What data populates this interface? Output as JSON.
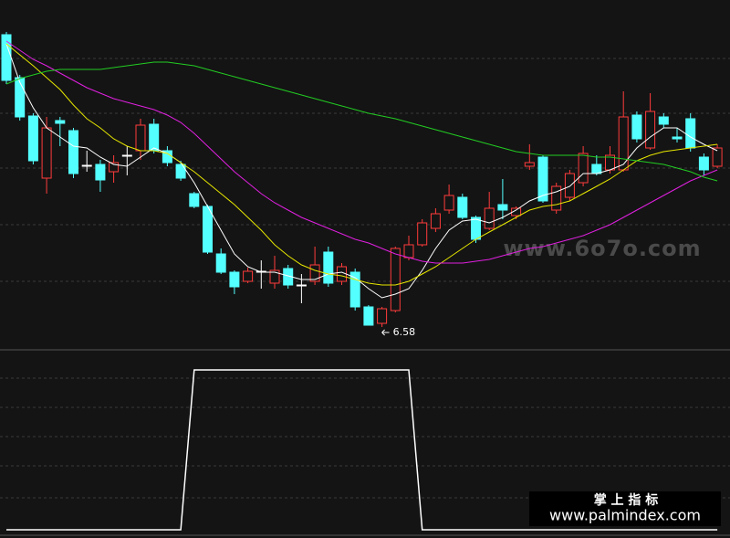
{
  "chart_data": [
    {
      "type": "candlestick",
      "ylim": [
        6.34,
        10.16
      ],
      "up_color": "#ff3b3b",
      "down_color": "#54ffff",
      "flat_color": "#ffffff",
      "open": [
        9.78,
        9.31,
        8.89,
        8.21,
        8.84,
        8.73,
        8.35,
        8.36,
        8.28,
        8.46,
        8.51,
        8.8,
        8.51,
        8.36,
        8.04,
        7.9,
        7.38,
        7.18,
        7.08,
        7.19,
        7.06,
        7.22,
        7.04,
        7.08,
        7.4,
        7.08,
        7.18,
        6.8,
        6.62,
        6.76,
        7.34,
        7.48,
        7.66,
        7.86,
        8.0,
        7.78,
        7.66,
        7.92,
        7.8,
        8.34,
        8.44,
        7.86,
        8.0,
        8.16,
        8.36,
        8.3,
        8.3,
        8.9,
        8.54,
        8.88,
        8.66,
        8.86,
        8.44,
        8.34
      ],
      "high": [
        9.81,
        9.34,
        8.92,
        8.88,
        8.88,
        8.76,
        8.51,
        8.41,
        8.46,
        8.56,
        8.86,
        8.86,
        8.56,
        8.4,
        8.06,
        7.92,
        7.44,
        7.2,
        7.23,
        7.31,
        7.36,
        7.26,
        7.16,
        7.46,
        7.46,
        7.28,
        7.22,
        6.82,
        6.8,
        7.46,
        7.58,
        7.76,
        7.88,
        8.14,
        8.04,
        7.8,
        8.06,
        8.2,
        7.9,
        8.58,
        8.46,
        8.16,
        8.3,
        8.56,
        8.46,
        8.56,
        9.16,
        8.94,
        9.14,
        8.92,
        8.76,
        8.92,
        8.48,
        8.58
      ],
      "low": [
        9.24,
        8.84,
        8.36,
        8.04,
        8.56,
        8.21,
        8.28,
        8.06,
        8.16,
        8.24,
        8.41,
        8.48,
        8.34,
        8.18,
        7.88,
        7.38,
        7.16,
        6.94,
        7.06,
        7.0,
        7.0,
        7.0,
        6.84,
        7.04,
        7.02,
        7.04,
        6.76,
        6.6,
        6.58,
        6.74,
        7.31,
        7.46,
        7.62,
        7.82,
        7.76,
        7.5,
        7.64,
        7.76,
        7.76,
        8.3,
        7.94,
        7.82,
        7.96,
        8.12,
        8.24,
        8.26,
        8.28,
        8.6,
        8.52,
        8.76,
        8.6,
        8.5,
        8.24,
        8.32
      ],
      "close": [
        9.28,
        8.88,
        8.4,
        8.76,
        8.81,
        8.26,
        8.35,
        8.19,
        8.38,
        8.46,
        8.79,
        8.51,
        8.38,
        8.21,
        7.9,
        7.4,
        7.18,
        7.02,
        7.19,
        7.19,
        7.2,
        7.04,
        7.04,
        7.26,
        7.06,
        7.24,
        6.8,
        6.6,
        6.78,
        7.44,
        7.48,
        7.72,
        7.82,
        8.02,
        7.78,
        7.54,
        7.88,
        7.86,
        7.88,
        8.38,
        7.96,
        8.12,
        8.26,
        8.48,
        8.26,
        8.46,
        8.88,
        8.64,
        8.94,
        8.8,
        8.64,
        8.54,
        8.3,
        8.54
      ],
      "series": [
        {
          "color": "#ffffff",
          "values": [
            9.68,
            9.26,
            8.98,
            8.76,
            8.66,
            8.56,
            8.54,
            8.44,
            8.36,
            8.34,
            8.44,
            8.54,
            8.48,
            8.38,
            8.16,
            7.9,
            7.64,
            7.38,
            7.24,
            7.18,
            7.18,
            7.14,
            7.1,
            7.1,
            7.16,
            7.18,
            7.12,
            7.0,
            6.9,
            6.94,
            7.0,
            7.2,
            7.44,
            7.64,
            7.74,
            7.76,
            7.72,
            7.78,
            7.86,
            7.96,
            8.02,
            8.06,
            8.12,
            8.26,
            8.26,
            8.3,
            8.36,
            8.54,
            8.66,
            8.76,
            8.76,
            8.66,
            8.58,
            8.51
          ]
        },
        {
          "color": "#e6e600",
          "values": [
            9.68,
            9.56,
            9.44,
            9.31,
            9.18,
            9.01,
            8.86,
            8.76,
            8.64,
            8.56,
            8.51,
            8.51,
            8.48,
            8.38,
            8.28,
            8.16,
            8.04,
            7.92,
            7.78,
            7.64,
            7.48,
            7.36,
            7.26,
            7.2,
            7.16,
            7.14,
            7.1,
            7.06,
            7.04,
            7.04,
            7.08,
            7.16,
            7.24,
            7.34,
            7.44,
            7.54,
            7.62,
            7.7,
            7.78,
            7.86,
            7.9,
            7.92,
            7.96,
            8.04,
            8.12,
            8.2,
            8.3,
            8.4,
            8.46,
            8.5,
            8.52,
            8.54,
            8.56,
            8.58
          ]
        },
        {
          "color": "#e020e0",
          "values": [
            9.71,
            9.61,
            9.51,
            9.44,
            9.36,
            9.28,
            9.2,
            9.14,
            9.08,
            9.04,
            9.0,
            8.96,
            8.9,
            8.82,
            8.7,
            8.56,
            8.42,
            8.28,
            8.16,
            8.04,
            7.94,
            7.86,
            7.78,
            7.72,
            7.66,
            7.6,
            7.54,
            7.5,
            7.44,
            7.38,
            7.34,
            7.3,
            7.28,
            7.28,
            7.28,
            7.3,
            7.32,
            7.36,
            7.4,
            7.44,
            7.46,
            7.5,
            7.54,
            7.58,
            7.64,
            7.7,
            7.78,
            7.86,
            7.94,
            8.02,
            8.1,
            8.18,
            8.24,
            8.3
          ]
        },
        {
          "color": "#22cc22",
          "values": [
            9.24,
            9.3,
            9.34,
            9.38,
            9.4,
            9.4,
            9.4,
            9.4,
            9.42,
            9.44,
            9.46,
            9.48,
            9.48,
            9.46,
            9.44,
            9.4,
            9.36,
            9.32,
            9.28,
            9.24,
            9.2,
            9.16,
            9.12,
            9.08,
            9.04,
            9.0,
            8.96,
            8.92,
            8.89,
            8.86,
            8.82,
            8.78,
            8.74,
            8.7,
            8.66,
            8.62,
            8.58,
            8.54,
            8.5,
            8.48,
            8.46,
            8.46,
            8.46,
            8.46,
            8.44,
            8.44,
            8.42,
            8.4,
            8.38,
            8.36,
            8.32,
            8.28,
            8.22,
            8.18
          ]
        }
      ]
    },
    {
      "type": "line",
      "ylim": [
        0,
        1
      ],
      "color": "#ffffff",
      "values": [
        0,
        0,
        0,
        0,
        0,
        0,
        0,
        0,
        0,
        0,
        0,
        0,
        0,
        0,
        1,
        1,
        1,
        1,
        1,
        1,
        1,
        1,
        1,
        1,
        1,
        1,
        1,
        1,
        1,
        1,
        1,
        0,
        0,
        0,
        0,
        0,
        0,
        0,
        0,
        0,
        0,
        0,
        0,
        0,
        0,
        0,
        0,
        0,
        0,
        0,
        0,
        0,
        0,
        0
      ]
    }
  ],
  "watermarks": {
    "site": "www.6o7o.com",
    "brand": "掌 上 指 标",
    "url": "www.palmindex.com"
  }
}
